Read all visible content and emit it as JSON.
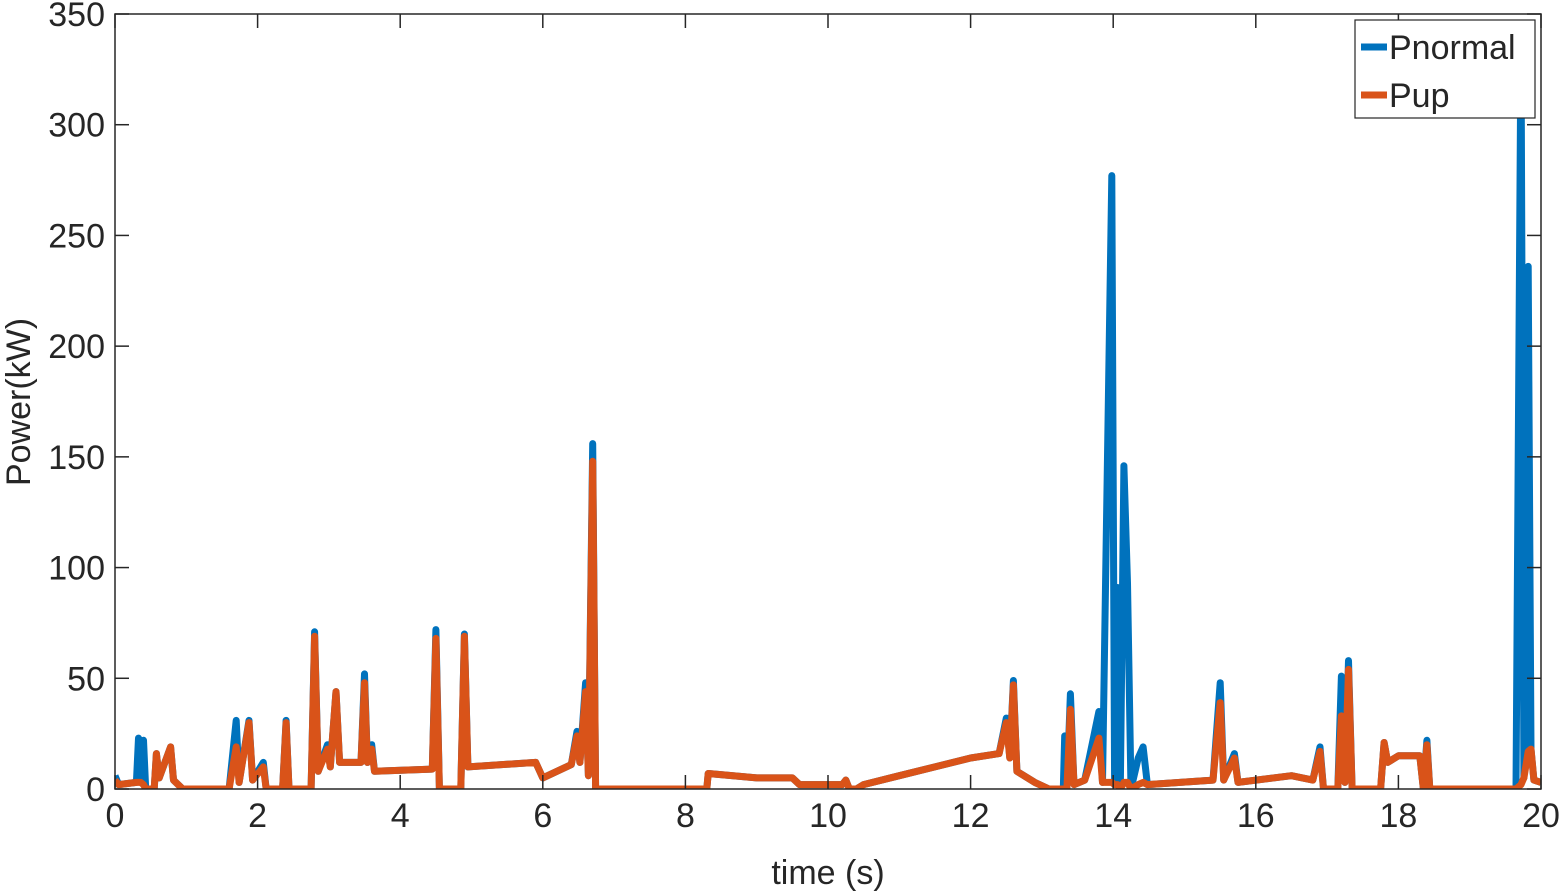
{
  "chart_data": {
    "type": "line",
    "xlabel": "time (s)",
    "ylabel": "Power(kW)",
    "x": [
      0,
      0.05,
      0.3,
      0.33,
      0.36,
      0.4,
      0.43,
      0.55,
      0.58,
      0.62,
      0.78,
      0.82,
      0.95,
      1.6,
      1.7,
      1.74,
      1.88,
      1.93,
      2.08,
      2.12,
      2.35,
      2.4,
      2.44,
      2.75,
      2.8,
      2.85,
      2.98,
      3.02,
      3.1,
      3.15,
      3.45,
      3.5,
      3.54,
      3.6,
      3.64,
      4.45,
      4.5,
      4.55,
      4.85,
      4.9,
      4.95,
      5.9,
      6.0,
      6.4,
      6.48,
      6.52,
      6.6,
      6.64,
      6.7,
      6.74,
      8.3,
      8.32,
      9.0,
      9.5,
      9.6,
      10.2,
      10.25,
      10.3,
      10.4,
      10.5,
      11.0,
      11.5,
      12.0,
      12.4,
      12.5,
      12.55,
      12.6,
      12.65,
      12.9,
      13.1,
      13.3,
      13.32,
      13.35,
      13.4,
      13.45,
      13.6,
      13.8,
      13.85,
      13.98,
      14.02,
      14.06,
      14.1,
      14.15,
      14.2,
      14.25,
      14.35,
      14.42,
      14.48,
      15.4,
      15.5,
      15.55,
      15.7,
      15.75,
      16.5,
      16.8,
      16.9,
      16.95,
      17.15,
      17.2,
      17.25,
      17.3,
      17.35,
      17.75,
      17.8,
      17.85,
      18.0,
      18.3,
      18.35,
      18.4,
      18.44,
      19.65,
      19.72,
      19.76,
      19.82,
      19.86,
      19.9,
      20
    ],
    "series": [
      {
        "name": "Pnormal",
        "color": "#0072bd",
        "values": [
          6,
          2,
          3,
          23,
          3,
          22,
          0,
          0,
          16,
          5,
          19,
          4,
          0,
          0,
          31,
          3,
          31,
          4,
          12,
          0,
          0,
          31,
          0,
          0,
          71,
          8,
          20,
          10,
          44,
          12,
          12,
          52,
          12,
          20,
          8,
          9,
          72,
          0,
          0,
          70,
          10,
          12,
          5,
          11,
          26,
          12,
          48,
          6,
          156,
          0,
          0,
          7,
          5,
          5,
          2,
          2,
          4,
          0,
          0,
          2,
          6,
          10,
          14,
          16,
          32,
          14,
          49,
          8,
          3,
          0,
          0,
          24,
          0,
          43,
          2,
          4,
          35,
          3,
          277,
          2,
          91,
          0,
          146,
          93,
          0,
          14,
          19,
          2,
          4,
          48,
          4,
          16,
          3,
          6,
          4,
          19,
          0,
          0,
          51,
          3,
          58,
          0,
          0,
          21,
          12,
          15,
          15,
          0,
          22,
          0,
          0,
          340,
          5,
          236,
          18,
          4,
          3
        ]
      },
      {
        "name": "Pup",
        "color": "#d95319",
        "values": [
          4,
          2,
          3,
          3,
          3,
          2,
          0,
          0,
          16,
          5,
          19,
          4,
          0,
          0,
          19,
          3,
          30,
          4,
          10,
          0,
          0,
          30,
          0,
          0,
          69,
          8,
          18,
          10,
          44,
          12,
          12,
          48,
          12,
          18,
          8,
          9,
          68,
          0,
          0,
          69,
          10,
          12,
          5,
          11,
          24,
          12,
          44,
          6,
          148,
          0,
          0,
          7,
          5,
          5,
          2,
          2,
          4,
          0,
          0,
          2,
          6,
          10,
          14,
          16,
          30,
          14,
          47,
          8,
          3,
          0,
          0,
          0,
          0,
          36,
          2,
          4,
          23,
          3,
          3,
          2,
          2,
          0,
          3,
          3,
          0,
          2,
          3,
          2,
          4,
          39,
          4,
          14,
          3,
          6,
          4,
          17,
          0,
          0,
          33,
          3,
          54,
          0,
          0,
          21,
          12,
          15,
          15,
          0,
          20,
          0,
          0,
          2,
          5,
          17,
          18,
          4,
          3
        ]
      }
    ],
    "xlim": [
      0,
      20
    ],
    "xticks": [
      0,
      2,
      4,
      6,
      8,
      10,
      12,
      14,
      16,
      18,
      20
    ],
    "ylim": [
      0,
      350
    ],
    "yticks": [
      0,
      50,
      100,
      150,
      200,
      250,
      300,
      350
    ],
    "legend": "northeast",
    "grid": false
  }
}
